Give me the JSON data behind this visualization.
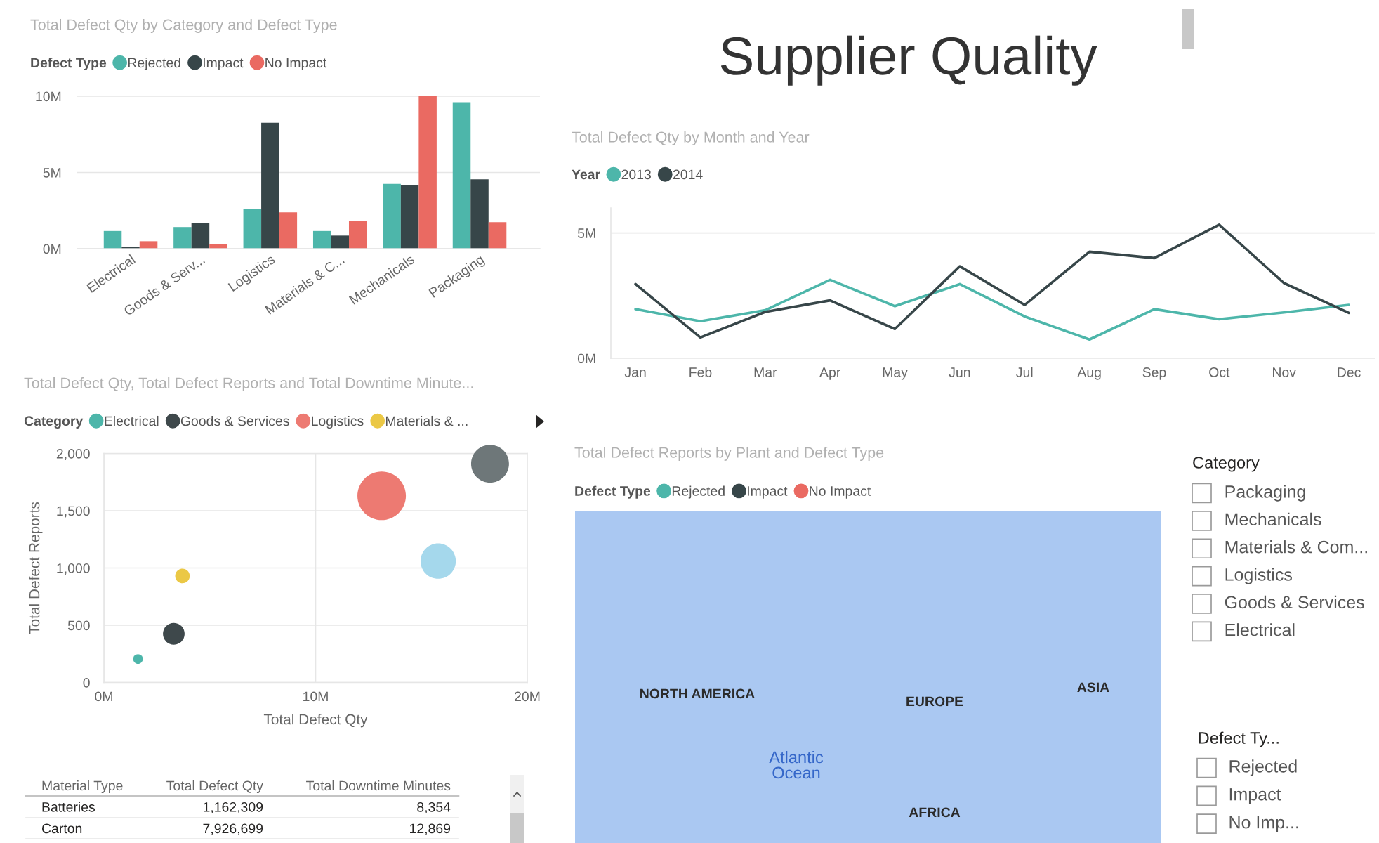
{
  "chart_data": [
    {
      "type": "bar",
      "title": "Total Defect Qty by Category and Defect Type",
      "legend_title": "Defect Type",
      "categories": [
        "Electrical",
        "Goods & Serv...",
        "Logistics",
        "Materials & C...",
        "Mechanicals",
        "Packaging"
      ],
      "series": [
        {
          "name": "Rejected",
          "color": "#4db6aa",
          "values": [
            1160000,
            1420000,
            2580000,
            1160000,
            4250000,
            9610000
          ]
        },
        {
          "name": "Impact",
          "color": "#374649",
          "values": [
            120000,
            1690000,
            8260000,
            860000,
            4150000,
            4550000
          ]
        },
        {
          "name": "No Impact",
          "color": "#ea6a62",
          "values": [
            490000,
            320000,
            2390000,
            1830000,
            10000000,
            1740000
          ]
        }
      ],
      "ylim": [
        0,
        10000000
      ],
      "yticks": [
        {
          "value": 0,
          "label": "0M"
        },
        {
          "value": 5000000,
          "label": "5M"
        },
        {
          "value": 10000000,
          "label": "10M"
        }
      ],
      "grid": "y",
      "legend": "top left"
    },
    {
      "type": "other",
      "title": "Supplier Quality"
    },
    {
      "type": "line",
      "title": "Total Defect Qty by Month and Year",
      "legend_title": "Year",
      "categories": [
        "Jan",
        "Feb",
        "Mar",
        "Apr",
        "May",
        "Jun",
        "Jul",
        "Aug",
        "Sep",
        "Oct",
        "Nov",
        "Dec"
      ],
      "series": [
        {
          "name": "2013",
          "color": "#4db6aa",
          "values": [
            1960000,
            1480000,
            1920000,
            3130000,
            2080000,
            2960000,
            1670000,
            750000,
            1960000,
            1560000,
            1830000,
            2130000
          ]
        },
        {
          "name": "2014",
          "color": "#374649",
          "values": [
            2960000,
            830000,
            1850000,
            2310000,
            1170000,
            3670000,
            2130000,
            4250000,
            4000000,
            5330000,
            3000000,
            1810000
          ]
        }
      ],
      "ylim": [
        0,
        6000000
      ],
      "yticks": [
        {
          "value": 0,
          "label": "0M"
        },
        {
          "value": 5000000,
          "label": "5M"
        }
      ],
      "grid": "y",
      "legend": "top left"
    },
    {
      "type": "bubble",
      "title": "Total Defect Qty, Total Defect Reports and Total Downtime Minute...",
      "xlabel": "Total Defect Qty",
      "ylabel": "Total Defect Reports",
      "legend_title": "Category",
      "series": [
        {
          "name": "Electrical",
          "color": "#4db6aa",
          "x": [
            1610000
          ],
          "values": [
            205
          ],
          "sizes": [
            0.04
          ]
        },
        {
          "name": "Goods & Services",
          "color": "#3e484b",
          "x": [
            3300000
          ],
          "values": [
            425
          ],
          "sizes": [
            0.2
          ]
        },
        {
          "name": "Logistics",
          "color": "#ed7a72",
          "x": [
            13120000
          ],
          "values": [
            1630
          ],
          "sizes": [
            1
          ]
        },
        {
          "name": "Materials & ...",
          "color": "#ebc845",
          "x": [
            3710000
          ],
          "values": [
            930
          ],
          "sizes": [
            0.09
          ]
        },
        {
          "color": "#6e7779",
          "x": [
            18240000
          ],
          "values": [
            1910
          ],
          "sizes": [
            0.61
          ]
        },
        {
          "color": "#a5d8ec",
          "x": [
            15790000
          ],
          "values": [
            1060
          ],
          "sizes": [
            0.53
          ]
        }
      ],
      "xlim": [
        0,
        20000000
      ],
      "xticks": [
        {
          "value": 0,
          "label": "0M"
        },
        {
          "value": 10000000,
          "label": "10M"
        },
        {
          "value": 20000000,
          "label": "20M"
        }
      ],
      "ylim": [
        0,
        2000
      ],
      "yticks": [
        0,
        500,
        {
          "value": 1000,
          "label": "1,000"
        },
        {
          "value": 1500,
          "label": "1,500"
        },
        {
          "value": 2000,
          "label": "2,000"
        }
      ],
      "grid": true,
      "legend": "top left"
    },
    {
      "type": "other",
      "title": "Total Defect Reports by Plant and Defect Type",
      "legend_title": "Defect Type",
      "series": [
        {
          "name": "Rejected",
          "color": "#4db6aa"
        },
        {
          "name": "Impact",
          "color": "#374649"
        },
        {
          "name": "No Impact",
          "color": "#ea6a62"
        }
      ],
      "legend": "top left",
      "annotations": [
        "NORTH AMERICA",
        "EUROPE",
        "ASIA",
        "Atlantic\nOcean",
        "AFRICA"
      ]
    },
    {
      "type": "other",
      "title": "Category",
      "annotations": [
        "Packaging",
        "Mechanicals",
        "Materials & Com...",
        "Logistics",
        "Goods & Services",
        "Electrical"
      ]
    },
    {
      "type": "other",
      "title": "Defect Ty...",
      "annotations": [
        "Rejected",
        "Impact",
        "No Imp..."
      ]
    },
    {
      "type": "other",
      "annotations": [
        "Material Type",
        "Total Defect Qty",
        "Total Downtime Minutes",
        "Batteries",
        "1,162,309",
        "8,354",
        "Carton",
        "7,926,699",
        "12,869"
      ]
    }
  ]
}
